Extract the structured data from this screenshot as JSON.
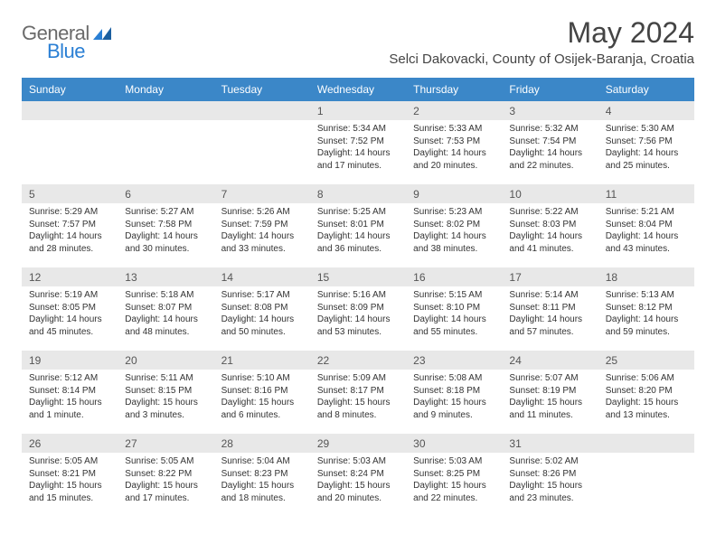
{
  "brand": {
    "general": "General",
    "blue": "Blue"
  },
  "title": "May 2024",
  "location": "Selci Dakovacki, County of Osijek-Baranja, Croatia",
  "colors": {
    "header_bg": "#3b87c8",
    "header_text": "#ffffff",
    "daynum_bg": "#e8e8e8",
    "daynum_text": "#555555",
    "body_text": "#333333",
    "title_text": "#444444",
    "logo_gray": "#6a6a6a",
    "logo_blue": "#2a7fd4"
  },
  "fonts": {
    "family": "Arial",
    "title_size": 32,
    "location_size": 15,
    "weekday_size": 12,
    "daynum_size": 12,
    "cell_size": 10
  },
  "weekdays": [
    "Sunday",
    "Monday",
    "Tuesday",
    "Wednesday",
    "Thursday",
    "Friday",
    "Saturday"
  ],
  "weeks": [
    {
      "nums": [
        "",
        "",
        "",
        "1",
        "2",
        "3",
        "4"
      ],
      "cells": [
        null,
        null,
        null,
        {
          "sunrise": "5:34 AM",
          "sunset": "7:52 PM",
          "daylight": "14 hours and 17 minutes."
        },
        {
          "sunrise": "5:33 AM",
          "sunset": "7:53 PM",
          "daylight": "14 hours and 20 minutes."
        },
        {
          "sunrise": "5:32 AM",
          "sunset": "7:54 PM",
          "daylight": "14 hours and 22 minutes."
        },
        {
          "sunrise": "5:30 AM",
          "sunset": "7:56 PM",
          "daylight": "14 hours and 25 minutes."
        }
      ]
    },
    {
      "nums": [
        "5",
        "6",
        "7",
        "8",
        "9",
        "10",
        "11"
      ],
      "cells": [
        {
          "sunrise": "5:29 AM",
          "sunset": "7:57 PM",
          "daylight": "14 hours and 28 minutes."
        },
        {
          "sunrise": "5:27 AM",
          "sunset": "7:58 PM",
          "daylight": "14 hours and 30 minutes."
        },
        {
          "sunrise": "5:26 AM",
          "sunset": "7:59 PM",
          "daylight": "14 hours and 33 minutes."
        },
        {
          "sunrise": "5:25 AM",
          "sunset": "8:01 PM",
          "daylight": "14 hours and 36 minutes."
        },
        {
          "sunrise": "5:23 AM",
          "sunset": "8:02 PM",
          "daylight": "14 hours and 38 minutes."
        },
        {
          "sunrise": "5:22 AM",
          "sunset": "8:03 PM",
          "daylight": "14 hours and 41 minutes."
        },
        {
          "sunrise": "5:21 AM",
          "sunset": "8:04 PM",
          "daylight": "14 hours and 43 minutes."
        }
      ]
    },
    {
      "nums": [
        "12",
        "13",
        "14",
        "15",
        "16",
        "17",
        "18"
      ],
      "cells": [
        {
          "sunrise": "5:19 AM",
          "sunset": "8:05 PM",
          "daylight": "14 hours and 45 minutes."
        },
        {
          "sunrise": "5:18 AM",
          "sunset": "8:07 PM",
          "daylight": "14 hours and 48 minutes."
        },
        {
          "sunrise": "5:17 AM",
          "sunset": "8:08 PM",
          "daylight": "14 hours and 50 minutes."
        },
        {
          "sunrise": "5:16 AM",
          "sunset": "8:09 PM",
          "daylight": "14 hours and 53 minutes."
        },
        {
          "sunrise": "5:15 AM",
          "sunset": "8:10 PM",
          "daylight": "14 hours and 55 minutes."
        },
        {
          "sunrise": "5:14 AM",
          "sunset": "8:11 PM",
          "daylight": "14 hours and 57 minutes."
        },
        {
          "sunrise": "5:13 AM",
          "sunset": "8:12 PM",
          "daylight": "14 hours and 59 minutes."
        }
      ]
    },
    {
      "nums": [
        "19",
        "20",
        "21",
        "22",
        "23",
        "24",
        "25"
      ],
      "cells": [
        {
          "sunrise": "5:12 AM",
          "sunset": "8:14 PM",
          "daylight": "15 hours and 1 minute."
        },
        {
          "sunrise": "5:11 AM",
          "sunset": "8:15 PM",
          "daylight": "15 hours and 3 minutes."
        },
        {
          "sunrise": "5:10 AM",
          "sunset": "8:16 PM",
          "daylight": "15 hours and 6 minutes."
        },
        {
          "sunrise": "5:09 AM",
          "sunset": "8:17 PM",
          "daylight": "15 hours and 8 minutes."
        },
        {
          "sunrise": "5:08 AM",
          "sunset": "8:18 PM",
          "daylight": "15 hours and 9 minutes."
        },
        {
          "sunrise": "5:07 AM",
          "sunset": "8:19 PM",
          "daylight": "15 hours and 11 minutes."
        },
        {
          "sunrise": "5:06 AM",
          "sunset": "8:20 PM",
          "daylight": "15 hours and 13 minutes."
        }
      ]
    },
    {
      "nums": [
        "26",
        "27",
        "28",
        "29",
        "30",
        "31",
        ""
      ],
      "cells": [
        {
          "sunrise": "5:05 AM",
          "sunset": "8:21 PM",
          "daylight": "15 hours and 15 minutes."
        },
        {
          "sunrise": "5:05 AM",
          "sunset": "8:22 PM",
          "daylight": "15 hours and 17 minutes."
        },
        {
          "sunrise": "5:04 AM",
          "sunset": "8:23 PM",
          "daylight": "15 hours and 18 minutes."
        },
        {
          "sunrise": "5:03 AM",
          "sunset": "8:24 PM",
          "daylight": "15 hours and 20 minutes."
        },
        {
          "sunrise": "5:03 AM",
          "sunset": "8:25 PM",
          "daylight": "15 hours and 22 minutes."
        },
        {
          "sunrise": "5:02 AM",
          "sunset": "8:26 PM",
          "daylight": "15 hours and 23 minutes."
        },
        null
      ]
    }
  ],
  "labels": {
    "sunrise": "Sunrise: ",
    "sunset": "Sunset: ",
    "daylight": "Daylight: "
  }
}
